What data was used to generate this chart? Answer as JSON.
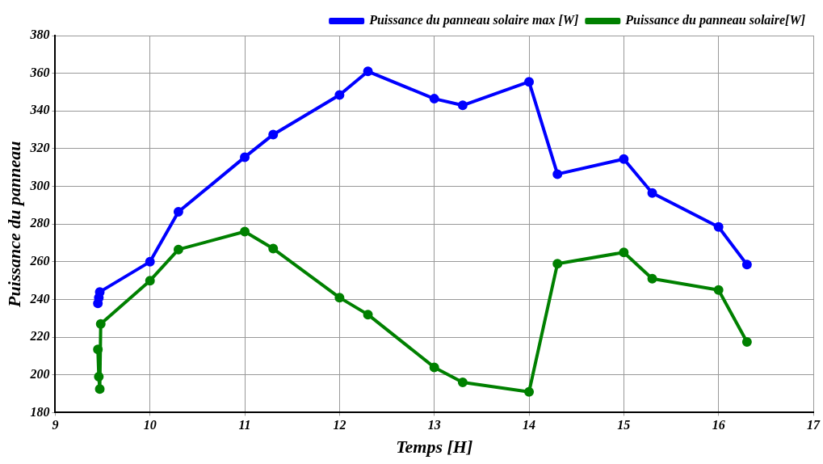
{
  "chart_data": {
    "type": "line",
    "xlabel": "Temps [H]",
    "ylabel": "Puissance du panneau",
    "xlim": [
      9,
      17
    ],
    "xticks": [
      9,
      10,
      11,
      12,
      13,
      14,
      15,
      16,
      17
    ],
    "ylim": [
      180,
      380
    ],
    "yticks": [
      180,
      200,
      220,
      240,
      260,
      280,
      300,
      320,
      340,
      360,
      380
    ],
    "grid": true,
    "legend": "top right",
    "marker": "circle",
    "line_style": "solid",
    "series": [
      {
        "name": "Puissance du panneau solaire max [W]",
        "color": "#0000ff",
        "x": [
          9.45,
          9.46,
          9.47,
          10,
          10.3,
          11,
          11.3,
          12,
          12.3,
          13,
          13.3,
          14,
          14.3,
          15,
          15.3,
          16,
          16.3
        ],
        "values": [
          238,
          241,
          244,
          260,
          286.5,
          315.5,
          327.5,
          348.5,
          361,
          346.5,
          343,
          355.5,
          306.5,
          314.5,
          296.5,
          278.5,
          258.5
        ]
      },
      {
        "name": "Puissance du panneau solaire[W]",
        "color": "#008000",
        "x": [
          9.45,
          9.46,
          9.47,
          9.48,
          10,
          10.3,
          11,
          11.3,
          12,
          12.3,
          13,
          13.3,
          14,
          14.3,
          15,
          15.3,
          16,
          16.3
        ],
        "values": [
          213.5,
          199,
          192.5,
          227,
          250,
          266.5,
          276,
          267,
          241,
          232,
          204,
          196,
          191,
          259,
          265,
          251,
          245,
          217.5
        ]
      }
    ]
  }
}
